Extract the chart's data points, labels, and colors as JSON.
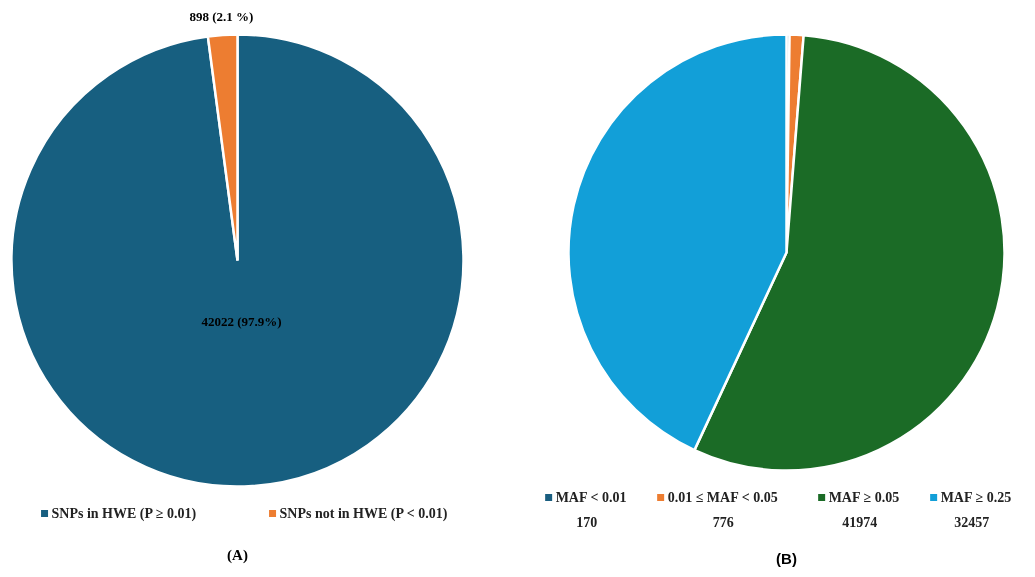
{
  "chart_data": [
    {
      "type": "pie",
      "title": "(A)",
      "categories": [
        "SNPs in HWE (P ≥ 0.01)",
        "SNPs not in HWE (P < 0.01)"
      ],
      "values": [
        42022,
        898
      ],
      "colors": [
        "#175f80",
        "#ed7d31"
      ],
      "value_labels": [
        "42022 (97.9%)",
        "898 (2.1 %)"
      ],
      "legend": "bottom"
    },
    {
      "type": "pie",
      "title": "(B)",
      "categories": [
        "MAF < 0.01",
        "0.01 ≤ MAF < 0.05",
        "MAF ≥ 0.05",
        "MAF ≥ 0.25"
      ],
      "values": [
        170,
        776,
        41974,
        32457
      ],
      "colors": [
        "#1a5e80",
        "#ed7d31",
        "#1b6b26",
        "#129fd8"
      ],
      "data_labels": true,
      "legend": "bottom"
    }
  ]
}
